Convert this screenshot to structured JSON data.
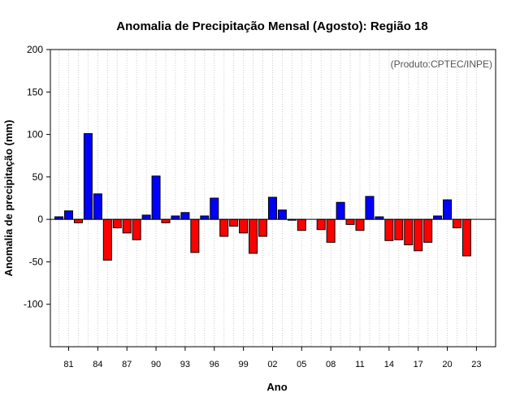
{
  "chart_data": {
    "type": "bar",
    "title": "Anomalia de Precipitação Mensal (Agosto): Região 18",
    "xlabel": "Ano",
    "ylabel": "Anomalia de precipitação (mm)",
    "annotation": "(Produto:CPTEC/INPE)",
    "ylim": [
      -150,
      200
    ],
    "yticks": [
      -100,
      -50,
      0,
      50,
      100,
      150,
      200
    ],
    "x_tick_labels": [
      "81",
      "84",
      "87",
      "90",
      "93",
      "96",
      "99",
      "02",
      "05",
      "08",
      "11",
      "14",
      "17",
      "20",
      "23"
    ],
    "x_tick_years": [
      1981,
      1984,
      1987,
      1990,
      1993,
      1996,
      1999,
      2002,
      2005,
      2008,
      2011,
      2014,
      2017,
      2020,
      2023
    ],
    "years": [
      1980,
      1981,
      1982,
      1983,
      1984,
      1985,
      1986,
      1987,
      1988,
      1989,
      1990,
      1991,
      1992,
      1993,
      1994,
      1995,
      1996,
      1997,
      1998,
      1999,
      2000,
      2001,
      2002,
      2003,
      2004,
      2005,
      2006,
      2007,
      2008,
      2009,
      2010,
      2011,
      2012,
      2013,
      2014,
      2015,
      2016,
      2017,
      2018,
      2019,
      2020,
      2021,
      2022,
      2023
    ],
    "values": [
      3,
      10,
      -4,
      101,
      30,
      -48,
      -10,
      -16,
      -24,
      5,
      51,
      -4,
      4,
      8,
      -39,
      4,
      25,
      -20,
      -8,
      -16,
      -40,
      -20,
      26,
      11,
      -1,
      -13,
      0,
      -12,
      -27,
      20,
      -6,
      -13,
      27,
      3,
      -25,
      -24,
      -30,
      -37,
      -27,
      4,
      23,
      -10,
      -43,
      0
    ],
    "positive_color": "#0000ff",
    "negative_color": "#ff0000"
  }
}
